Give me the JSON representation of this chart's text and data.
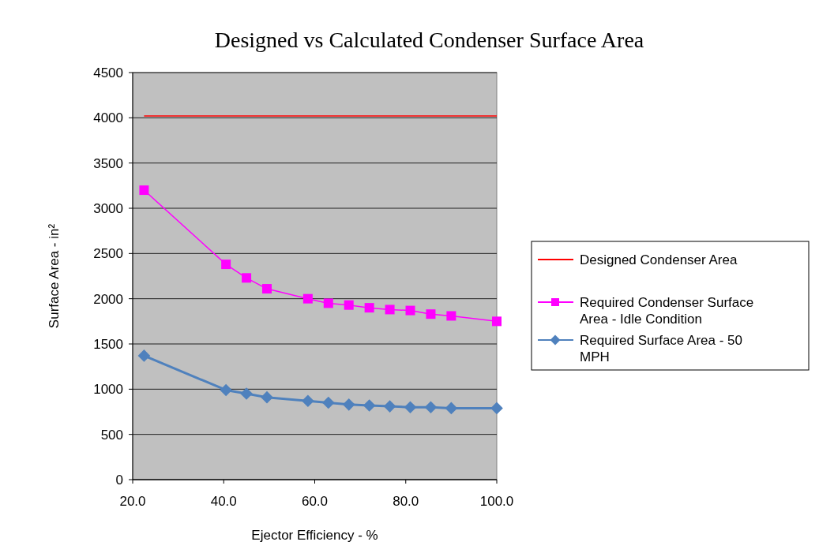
{
  "chart_data": {
    "type": "line",
    "title": "Designed vs Calculated Condenser Surface Area",
    "xlabel": "Ejector Efficiency - %",
    "ylabel": "Surface Area - in²",
    "xlim": [
      20,
      100
    ],
    "xticks": [
      {
        "value": 20,
        "label": "20.0"
      },
      {
        "value": 40,
        "label": "40.0"
      },
      {
        "value": 60,
        "label": "60.0"
      },
      {
        "value": 80,
        "label": "80.0"
      },
      {
        "value": 100,
        "label": "100.0"
      }
    ],
    "ylim": [
      0,
      4500
    ],
    "yticks": [
      0,
      500,
      1000,
      1500,
      2000,
      2500,
      3000,
      3500,
      4000,
      4500
    ],
    "grid": "y",
    "legend": "right",
    "series": [
      {
        "name": "Designed Condenser Area",
        "color": "#ff0000",
        "marker": "none",
        "x": [
          22.5,
          100
        ],
        "values": [
          4020,
          4020
        ]
      },
      {
        "name": "Required Condenser Surface Area - Idle Condition",
        "color": "#ff00ff",
        "marker": "square",
        "x": [
          22.5,
          40.5,
          45,
          49.5,
          58.5,
          63,
          67.5,
          72,
          76.5,
          81,
          85.5,
          90,
          100
        ],
        "values": [
          3200,
          2380,
          2230,
          2110,
          2000,
          1950,
          1930,
          1900,
          1880,
          1870,
          1830,
          1810,
          1750
        ]
      },
      {
        "name": "Required Surface Area - 50 MPH",
        "color": "#4f81bd",
        "marker": "diamond",
        "x": [
          22.5,
          40.5,
          45,
          49.5,
          58.5,
          63,
          67.5,
          72,
          76.5,
          81,
          85.5,
          90,
          100
        ],
        "values": [
          1370,
          990,
          950,
          910,
          870,
          850,
          830,
          820,
          810,
          800,
          800,
          790,
          790
        ]
      }
    ]
  }
}
